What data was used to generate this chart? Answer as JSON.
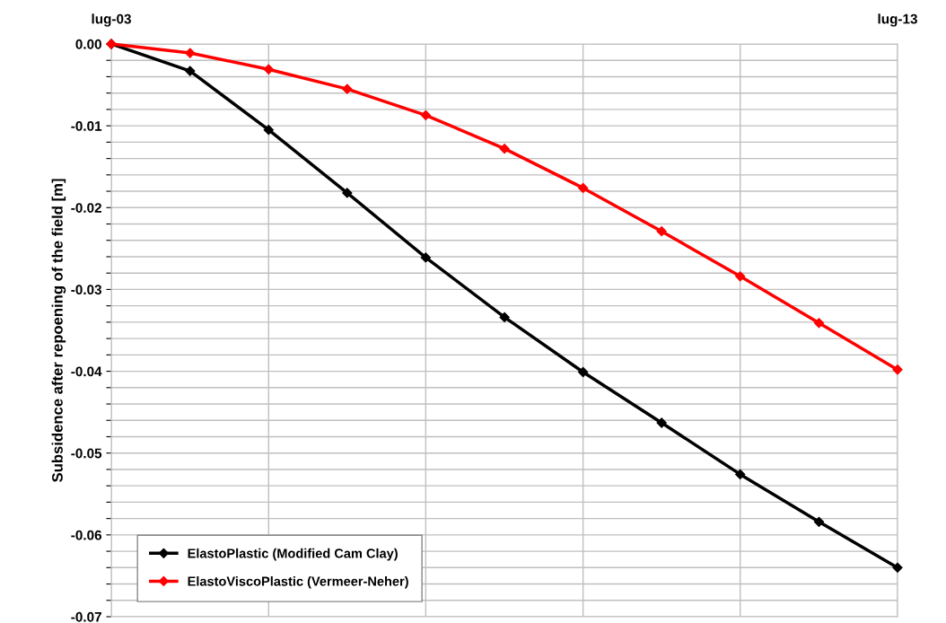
{
  "chart_data": {
    "type": "line",
    "ylabel": "Subsidence after repoening of the field [m]",
    "x": [
      "2003-07",
      "2004-07",
      "2005-07",
      "2006-07",
      "2007-07",
      "2008-07",
      "2009-07",
      "2010-07",
      "2011-07",
      "2012-07",
      "2013-07"
    ],
    "series": [
      {
        "name": "ElastoPlastic (Modified Cam Clay)",
        "color": "#000000",
        "values": [
          0,
          -0.0033,
          -0.0105,
          -0.0182,
          -0.0261,
          -0.0334,
          -0.0401,
          -0.0463,
          -0.0526,
          -0.0584,
          -0.064
        ]
      },
      {
        "name": "ElastoViscoPlastic (Vermeer-Neher)",
        "color": "#ff0000",
        "values": [
          0,
          -0.0011,
          -0.0031,
          -0.0055,
          -0.0087,
          -0.0128,
          -0.0176,
          -0.0229,
          -0.0284,
          -0.0341,
          -0.0398
        ]
      }
    ],
    "xlim": [
      "2003-07",
      "2013-07"
    ],
    "xticks": [
      {
        "value": "2003-07",
        "label": "lug-03"
      },
      {
        "value": "2005-07",
        "label": null
      },
      {
        "value": "2007-07",
        "label": null
      },
      {
        "value": "2009-07",
        "label": null
      },
      {
        "value": "2011-07",
        "label": null
      },
      {
        "value": "2013-07",
        "label": "lug-13"
      }
    ],
    "ylim": [
      -0.07,
      0
    ],
    "yticks": [
      {
        "value": 0,
        "label": "0.00"
      },
      {
        "value": -0.002,
        "label": null
      },
      {
        "value": -0.004,
        "label": null
      },
      {
        "value": -0.006,
        "label": null
      },
      {
        "value": -0.008,
        "label": null
      },
      {
        "value": -0.01,
        "label": "-0.01"
      },
      {
        "value": -0.012,
        "label": null
      },
      {
        "value": -0.014,
        "label": null
      },
      {
        "value": -0.016,
        "label": null
      },
      {
        "value": -0.018,
        "label": null
      },
      {
        "value": -0.02,
        "label": "-0.02"
      },
      {
        "value": -0.022,
        "label": null
      },
      {
        "value": -0.024,
        "label": null
      },
      {
        "value": -0.026,
        "label": null
      },
      {
        "value": -0.028,
        "label": null
      },
      {
        "value": -0.03,
        "label": "-0.03"
      },
      {
        "value": -0.032,
        "label": null
      },
      {
        "value": -0.034,
        "label": null
      },
      {
        "value": -0.036,
        "label": null
      },
      {
        "value": -0.038,
        "label": null
      },
      {
        "value": -0.04,
        "label": "-0.04"
      },
      {
        "value": -0.042,
        "label": null
      },
      {
        "value": -0.044,
        "label": null
      },
      {
        "value": -0.046,
        "label": null
      },
      {
        "value": -0.048,
        "label": null
      },
      {
        "value": -0.05,
        "label": "-0.05"
      },
      {
        "value": -0.052,
        "label": null
      },
      {
        "value": -0.054,
        "label": null
      },
      {
        "value": -0.056,
        "label": null
      },
      {
        "value": -0.058,
        "label": null
      },
      {
        "value": -0.06,
        "label": "-0.06"
      },
      {
        "value": -0.062,
        "label": null
      },
      {
        "value": -0.064,
        "label": null
      },
      {
        "value": -0.066,
        "label": null
      },
      {
        "value": -0.068,
        "label": null
      },
      {
        "value": -0.07,
        "label": "-0.07"
      }
    ],
    "grid": true,
    "legend": "bottom left",
    "marker": "diamond",
    "line_style": "solid"
  }
}
